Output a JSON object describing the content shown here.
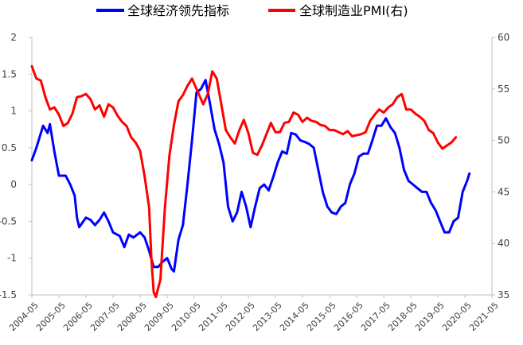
{
  "chart_data": {
    "type": "line",
    "legend": {
      "placement": "top-center"
    },
    "grid": false,
    "colors": {
      "lead": "#0000ff",
      "pmi": "#ff0000",
      "axis": "#bfbfbf",
      "text": "#404040"
    },
    "y_left": {
      "lim": [
        -1.5,
        2
      ],
      "ticks": [
        "2",
        "1.5",
        "1",
        "0.5",
        "0",
        "-0.5",
        "-1",
        "-1.5"
      ],
      "tick_values": [
        2,
        1.5,
        1,
        0.5,
        0,
        -0.5,
        -1,
        -1.5
      ]
    },
    "y_right": {
      "lim": [
        35,
        60
      ],
      "ticks": [
        "60",
        "55",
        "50",
        "45",
        "40",
        "35"
      ],
      "tick_values": [
        60,
        55,
        50,
        45,
        40,
        35
      ]
    },
    "x": {
      "start": "2004-05",
      "end": "2021-05",
      "ticks": [
        "2004-05",
        "2005-05",
        "2006-05",
        "2007-05",
        "2008-05",
        "2009-05",
        "2010-05",
        "2011-05",
        "2012-05",
        "2013-05",
        "2014-05",
        "2015-05",
        "2016-05",
        "2017-05",
        "2018-05",
        "2019-05",
        "2020-05",
        "2021-05"
      ]
    },
    "series": [
      {
        "name": "全球经济领先指标",
        "axis": "left",
        "points": [
          [
            "2004-05",
            0.33
          ],
          [
            "2004-07",
            0.5
          ],
          [
            "2004-10",
            0.8
          ],
          [
            "2004-12",
            0.7
          ],
          [
            "2005-01",
            0.82
          ],
          [
            "2005-03",
            0.45
          ],
          [
            "2005-05",
            0.12
          ],
          [
            "2005-08",
            0.12
          ],
          [
            "2005-10",
            0.0
          ],
          [
            "2005-12",
            -0.15
          ],
          [
            "2006-01",
            -0.45
          ],
          [
            "2006-02",
            -0.58
          ],
          [
            "2006-05",
            -0.45
          ],
          [
            "2006-07",
            -0.48
          ],
          [
            "2006-09",
            -0.55
          ],
          [
            "2006-11",
            -0.48
          ],
          [
            "2007-01",
            -0.38
          ],
          [
            "2007-03",
            -0.5
          ],
          [
            "2007-05",
            -0.65
          ],
          [
            "2007-08",
            -0.7
          ],
          [
            "2007-10",
            -0.85
          ],
          [
            "2007-12",
            -0.68
          ],
          [
            "2008-02",
            -0.72
          ],
          [
            "2008-05",
            -0.65
          ],
          [
            "2008-07",
            -0.72
          ],
          [
            "2008-09",
            -0.9
          ],
          [
            "2008-11",
            -1.12
          ],
          [
            "2009-01",
            -1.12
          ],
          [
            "2009-03",
            -1.05
          ],
          [
            "2009-05",
            -1.0
          ],
          [
            "2009-07",
            -1.15
          ],
          [
            "2009-08",
            -1.18
          ],
          [
            "2009-10",
            -0.75
          ],
          [
            "2009-12",
            -0.55
          ],
          [
            "2010-02",
            0.0
          ],
          [
            "2010-04",
            0.6
          ],
          [
            "2010-06",
            1.25
          ],
          [
            "2010-08",
            1.3
          ],
          [
            "2010-10",
            1.42
          ],
          [
            "2010-12",
            1.1
          ],
          [
            "2011-02",
            0.75
          ],
          [
            "2011-04",
            0.55
          ],
          [
            "2011-06",
            0.3
          ],
          [
            "2011-08",
            -0.3
          ],
          [
            "2011-10",
            -0.5
          ],
          [
            "2011-12",
            -0.38
          ],
          [
            "2012-02",
            -0.1
          ],
          [
            "2012-04",
            -0.3
          ],
          [
            "2012-06",
            -0.58
          ],
          [
            "2012-08",
            -0.3
          ],
          [
            "2012-10",
            -0.05
          ],
          [
            "2012-12",
            0.0
          ],
          [
            "2013-02",
            -0.08
          ],
          [
            "2013-04",
            0.1
          ],
          [
            "2013-06",
            0.3
          ],
          [
            "2013-08",
            0.45
          ],
          [
            "2013-10",
            0.42
          ],
          [
            "2013-12",
            0.7
          ],
          [
            "2014-02",
            0.68
          ],
          [
            "2014-04",
            0.6
          ],
          [
            "2014-06",
            0.58
          ],
          [
            "2014-08",
            0.55
          ],
          [
            "2014-10",
            0.5
          ],
          [
            "2014-12",
            0.2
          ],
          [
            "2015-02",
            -0.1
          ],
          [
            "2015-04",
            -0.3
          ],
          [
            "2015-06",
            -0.38
          ],
          [
            "2015-08",
            -0.4
          ],
          [
            "2015-10",
            -0.3
          ],
          [
            "2015-12",
            -0.25
          ],
          [
            "2016-02",
            0.0
          ],
          [
            "2016-04",
            0.15
          ],
          [
            "2016-06",
            0.38
          ],
          [
            "2016-08",
            0.42
          ],
          [
            "2016-10",
            0.42
          ],
          [
            "2016-12",
            0.6
          ],
          [
            "2017-02",
            0.8
          ],
          [
            "2017-04",
            0.8
          ],
          [
            "2017-06",
            0.9
          ],
          [
            "2017-08",
            0.78
          ],
          [
            "2017-10",
            0.7
          ],
          [
            "2017-12",
            0.5
          ],
          [
            "2018-02",
            0.2
          ],
          [
            "2018-04",
            0.05
          ],
          [
            "2018-06",
            0.0
          ],
          [
            "2018-08",
            -0.05
          ],
          [
            "2018-10",
            -0.1
          ],
          [
            "2018-12",
            -0.1
          ],
          [
            "2019-02",
            -0.25
          ],
          [
            "2019-04",
            -0.35
          ],
          [
            "2019-06",
            -0.5
          ],
          [
            "2019-08",
            -0.65
          ],
          [
            "2019-10",
            -0.65
          ],
          [
            "2019-12",
            -0.5
          ],
          [
            "2020-02",
            -0.45
          ],
          [
            "2020-04",
            -0.1
          ],
          [
            "2020-06",
            0.05
          ],
          [
            "2020-07",
            0.15
          ]
        ]
      },
      {
        "name": "全球制造业PMI(右)",
        "axis": "right",
        "points": [
          [
            "2004-05",
            57.2
          ],
          [
            "2004-07",
            56.0
          ],
          [
            "2004-09",
            55.8
          ],
          [
            "2004-11",
            54.2
          ],
          [
            "2005-01",
            53.0
          ],
          [
            "2005-03",
            53.2
          ],
          [
            "2005-05",
            52.5
          ],
          [
            "2005-07",
            51.4
          ],
          [
            "2005-09",
            51.7
          ],
          [
            "2005-11",
            52.6
          ],
          [
            "2006-01",
            54.2
          ],
          [
            "2006-03",
            54.3
          ],
          [
            "2006-05",
            54.5
          ],
          [
            "2006-07",
            54.0
          ],
          [
            "2006-09",
            53.0
          ],
          [
            "2006-11",
            53.4
          ],
          [
            "2007-01",
            52.3
          ],
          [
            "2007-03",
            53.5
          ],
          [
            "2007-05",
            53.2
          ],
          [
            "2007-07",
            52.4
          ],
          [
            "2007-09",
            51.8
          ],
          [
            "2007-11",
            51.4
          ],
          [
            "2008-01",
            50.3
          ],
          [
            "2008-03",
            49.8
          ],
          [
            "2008-05",
            49.0
          ],
          [
            "2008-07",
            46.5
          ],
          [
            "2008-09",
            43.5
          ],
          [
            "2008-10",
            38.5
          ],
          [
            "2008-11",
            35.3
          ],
          [
            "2008-12",
            34.8
          ],
          [
            "2009-02",
            36.5
          ],
          [
            "2009-04",
            43.5
          ],
          [
            "2009-06",
            48.5
          ],
          [
            "2009-08",
            51.5
          ],
          [
            "2009-10",
            53.8
          ],
          [
            "2009-12",
            54.4
          ],
          [
            "2010-02",
            55.3
          ],
          [
            "2010-04",
            56.0
          ],
          [
            "2010-05",
            55.5
          ],
          [
            "2010-07",
            54.5
          ],
          [
            "2010-09",
            53.5
          ],
          [
            "2010-11",
            54.5
          ],
          [
            "2011-01",
            56.7
          ],
          [
            "2011-03",
            56.0
          ],
          [
            "2011-05",
            53.5
          ],
          [
            "2011-07",
            51.0
          ],
          [
            "2011-09",
            50.3
          ],
          [
            "2011-11",
            49.7
          ],
          [
            "2012-01",
            51.0
          ],
          [
            "2012-03",
            52.0
          ],
          [
            "2012-05",
            50.7
          ],
          [
            "2012-07",
            48.8
          ],
          [
            "2012-09",
            48.6
          ],
          [
            "2012-11",
            49.5
          ],
          [
            "2013-01",
            50.6
          ],
          [
            "2013-03",
            51.7
          ],
          [
            "2013-05",
            50.8
          ],
          [
            "2013-07",
            50.8
          ],
          [
            "2013-09",
            51.7
          ],
          [
            "2013-11",
            51.8
          ],
          [
            "2014-01",
            52.7
          ],
          [
            "2014-03",
            52.5
          ],
          [
            "2014-05",
            51.8
          ],
          [
            "2014-07",
            52.2
          ],
          [
            "2014-09",
            51.9
          ],
          [
            "2014-11",
            51.8
          ],
          [
            "2015-01",
            51.5
          ],
          [
            "2015-03",
            51.4
          ],
          [
            "2015-05",
            51.0
          ],
          [
            "2015-07",
            51.0
          ],
          [
            "2015-09",
            50.8
          ],
          [
            "2015-11",
            50.6
          ],
          [
            "2016-01",
            50.9
          ],
          [
            "2016-03",
            50.4
          ],
          [
            "2016-05",
            50.5
          ],
          [
            "2016-07",
            50.6
          ],
          [
            "2016-09",
            50.8
          ],
          [
            "2016-11",
            51.9
          ],
          [
            "2017-01",
            52.5
          ],
          [
            "2017-03",
            53.0
          ],
          [
            "2017-05",
            52.7
          ],
          [
            "2017-07",
            53.2
          ],
          [
            "2017-09",
            53.5
          ],
          [
            "2017-11",
            54.2
          ],
          [
            "2018-01",
            54.5
          ],
          [
            "2018-03",
            53.0
          ],
          [
            "2018-05",
            53.0
          ],
          [
            "2018-07",
            52.6
          ],
          [
            "2018-09",
            52.3
          ],
          [
            "2018-11",
            51.9
          ],
          [
            "2019-01",
            51.0
          ],
          [
            "2019-03",
            50.7
          ],
          [
            "2019-05",
            49.8
          ],
          [
            "2019-07",
            49.2
          ],
          [
            "2019-09",
            49.5
          ],
          [
            "2019-11",
            49.8
          ],
          [
            "2020-01",
            50.3
          ]
        ]
      }
    ]
  }
}
